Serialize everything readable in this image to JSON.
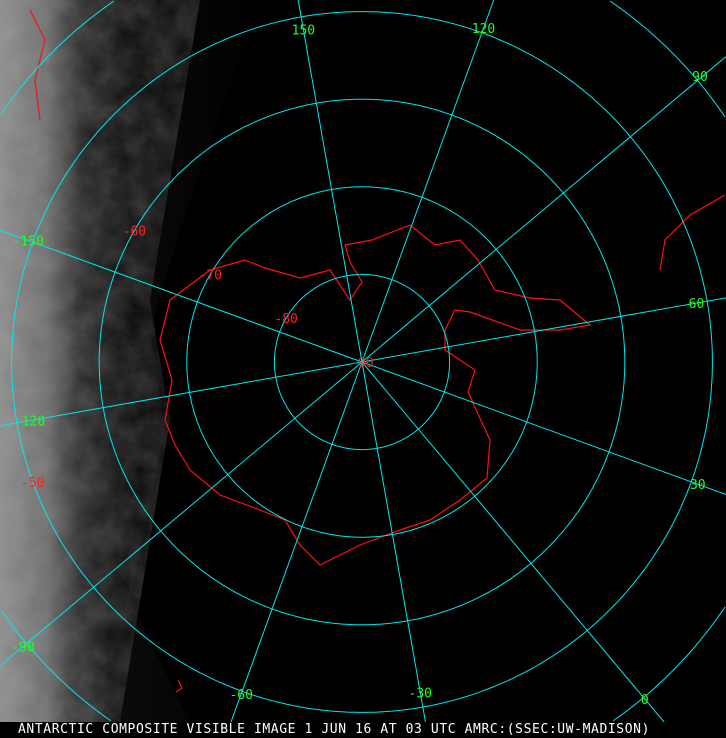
{
  "map": {
    "projection": "polar stereographic (south pole)",
    "colors": {
      "graticule": "#00e8ee",
      "coastline": "#ff1010",
      "lon_label": "#22ff22",
      "lat_label": "#ff2020",
      "caption": "#ffffff"
    },
    "latitude_labels": [
      "-50",
      "-60",
      "-70",
      "-80",
      "-90"
    ],
    "latitudes": [
      -50,
      -60,
      -70,
      -80,
      -90
    ],
    "longitude_labels": [
      "150",
      "120",
      "90",
      "60",
      "30",
      "0",
      "-30",
      "-60",
      "-90",
      "-120",
      "-150"
    ],
    "longitudes": [
      150,
      120,
      90,
      60,
      30,
      0,
      -30,
      -60,
      -90,
      -120,
      -150
    ]
  },
  "caption": "ANTARCTIC COMPOSITE VISIBLE IMAGE 1 JUN 16 AT 03 UTC AMRC:(SSEC:UW-MADISON)"
}
